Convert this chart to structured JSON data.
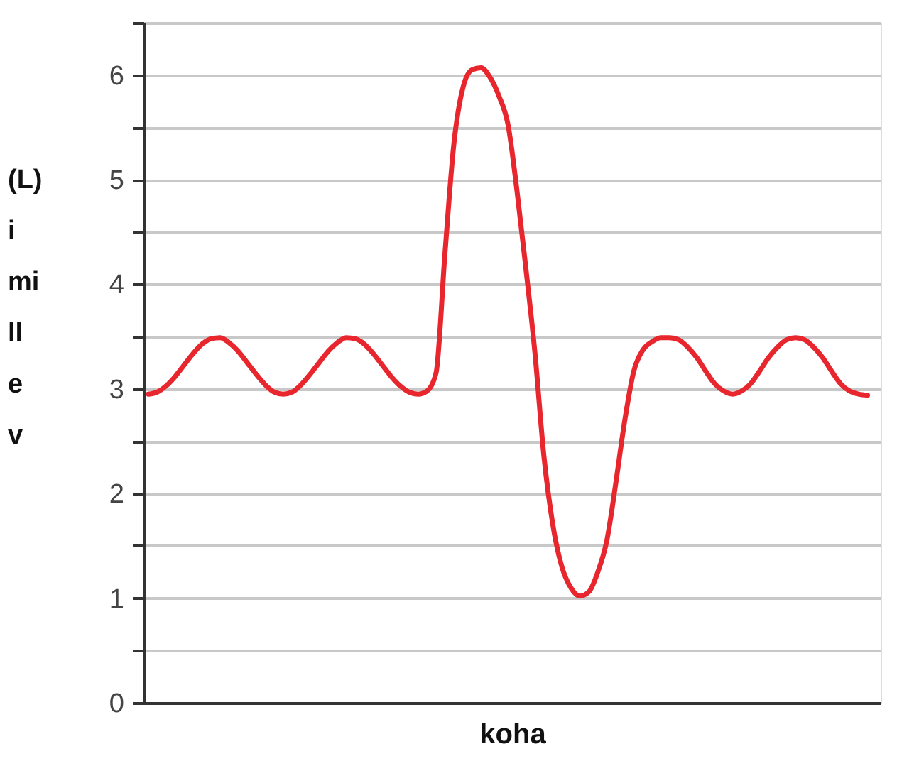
{
  "chart_data": {
    "type": "line",
    "xlabel": "koha",
    "ylabel": "(L)\ni\nmi\nll\ne\nv",
    "categories": [
      null,
      null,
      null,
      null,
      null,
      null,
      null,
      null,
      null,
      null,
      null,
      null,
      null,
      null,
      null,
      null,
      null,
      null,
      null,
      null,
      null,
      null,
      null,
      null,
      null,
      null,
      null,
      null,
      null,
      null,
      null,
      null,
      null,
      null,
      null,
      null,
      null,
      null,
      null,
      null,
      null,
      null,
      null,
      null,
      null,
      null,
      null,
      null,
      null,
      null,
      null,
      null,
      null,
      null,
      null,
      null,
      null,
      null,
      null,
      null,
      null,
      null,
      null,
      null,
      null,
      null,
      null,
      null,
      null,
      null,
      null,
      null,
      null,
      null,
      null,
      null,
      null,
      null,
      null,
      null,
      null
    ],
    "series": [
      {
        "color": "#e8262d",
        "values": [
          2.95,
          2.97,
          3.03,
          3.12,
          3.23,
          3.34,
          3.43,
          3.48,
          3.49,
          3.44,
          3.36,
          3.25,
          3.14,
          3.04,
          2.97,
          2.95,
          2.97,
          3.04,
          3.14,
          3.25,
          3.36,
          3.44,
          3.49,
          3.48,
          3.43,
          3.34,
          3.23,
          3.12,
          3.03,
          2.97,
          2.95,
          2.98,
          3.15,
          4.3,
          5.35,
          5.88,
          6.05,
          6.07,
          5.98,
          5.8,
          5.53,
          4.9,
          4.15,
          3.35,
          2.36,
          1.7,
          1.3,
          1.1,
          1.02,
          1.06,
          1.25,
          1.55,
          2.1,
          2.7,
          3.17,
          3.37,
          3.45,
          3.49,
          3.49,
          3.47,
          3.4,
          3.3,
          3.17,
          3.05,
          2.98,
          2.95,
          2.98,
          3.05,
          3.17,
          3.3,
          3.4,
          3.47,
          3.49,
          3.47,
          3.4,
          3.3,
          3.17,
          3.05,
          2.98,
          2.95,
          2.94
        ]
      }
    ],
    "ylim": [
      0,
      6.5
    ],
    "yticks": [
      0,
      {
        "value": 0.5,
        "label": null
      },
      1,
      {
        "value": 1.5,
        "label": null
      },
      2,
      {
        "value": 2.5,
        "label": null
      },
      3,
      {
        "value": 3.5,
        "label": null
      },
      4,
      {
        "value": 4.5,
        "label": null
      },
      5,
      {
        "value": 5.5,
        "label": null
      },
      6,
      {
        "value": 6.5,
        "label": null
      }
    ],
    "grid": "y",
    "tick_labels": "y",
    "marker": "none",
    "line_style": "solid"
  }
}
